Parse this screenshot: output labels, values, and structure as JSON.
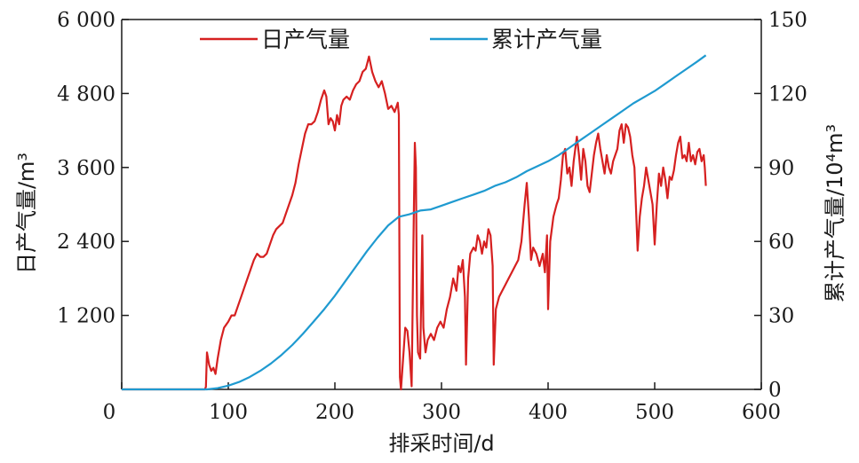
{
  "chart_data": {
    "type": "line",
    "xlabel": "排采时间/d",
    "ylabel_left": "日产气量/m³",
    "ylabel_right": "累计产气量/10⁴m³",
    "xlim": [
      0,
      600
    ],
    "ylim_left": [
      0,
      6000
    ],
    "ylim_right": [
      0,
      150
    ],
    "x_ticks": [
      {
        "value": 0,
        "label": "0"
      },
      {
        "value": 100,
        "label": "100"
      },
      {
        "value": 200,
        "label": "200"
      },
      {
        "value": 300,
        "label": "300"
      },
      {
        "value": 400,
        "label": "400"
      },
      {
        "value": 500,
        "label": "500"
      },
      {
        "value": 600,
        "label": "600"
      }
    ],
    "y_left_ticks": [
      {
        "value": 1200,
        "label": "1 200"
      },
      {
        "value": 2400,
        "label": "2 400"
      },
      {
        "value": 3600,
        "label": "3 600"
      },
      {
        "value": 4800,
        "label": "4 800"
      },
      {
        "value": 6000,
        "label": "6 000"
      }
    ],
    "y_right_ticks": [
      {
        "value": 0,
        "label": "0"
      },
      {
        "value": 30,
        "label": "30"
      },
      {
        "value": 60,
        "label": "60"
      },
      {
        "value": 90,
        "label": "90"
      },
      {
        "value": 120,
        "label": "120"
      },
      {
        "value": 150,
        "label": "150"
      }
    ],
    "legend_position": "top",
    "grid": false,
    "series": [
      {
        "name": "日产气量",
        "axis": "left",
        "color": "#d62020",
        "points": [
          [
            0,
            0
          ],
          [
            78,
            0
          ],
          [
            79,
            40
          ],
          [
            80,
            600
          ],
          [
            82,
            400
          ],
          [
            84,
            300
          ],
          [
            86,
            350
          ],
          [
            88,
            250
          ],
          [
            90,
            500
          ],
          [
            93,
            800
          ],
          [
            96,
            1000
          ],
          [
            100,
            1100
          ],
          [
            103,
            1200
          ],
          [
            106,
            1200
          ],
          [
            109,
            1350
          ],
          [
            112,
            1500
          ],
          [
            115,
            1650
          ],
          [
            118,
            1800
          ],
          [
            121,
            1950
          ],
          [
            124,
            2100
          ],
          [
            127,
            2200
          ],
          [
            130,
            2150
          ],
          [
            133,
            2150
          ],
          [
            136,
            2200
          ],
          [
            139,
            2350
          ],
          [
            142,
            2500
          ],
          [
            145,
            2600
          ],
          [
            148,
            2650
          ],
          [
            151,
            2700
          ],
          [
            154,
            2850
          ],
          [
            157,
            3000
          ],
          [
            160,
            3150
          ],
          [
            163,
            3350
          ],
          [
            166,
            3650
          ],
          [
            169,
            3900
          ],
          [
            172,
            4150
          ],
          [
            175,
            4300
          ],
          [
            178,
            4300
          ],
          [
            181,
            4350
          ],
          [
            184,
            4500
          ],
          [
            187,
            4700
          ],
          [
            190,
            4850
          ],
          [
            192,
            4750
          ],
          [
            194,
            4300
          ],
          [
            196,
            4400
          ],
          [
            198,
            4350
          ],
          [
            200,
            4200
          ],
          [
            202,
            4450
          ],
          [
            204,
            4300
          ],
          [
            206,
            4600
          ],
          [
            208,
            4700
          ],
          [
            211,
            4750
          ],
          [
            214,
            4700
          ],
          [
            217,
            4850
          ],
          [
            220,
            4950
          ],
          [
            223,
            5000
          ],
          [
            226,
            5150
          ],
          [
            229,
            5200
          ],
          [
            232,
            5400
          ],
          [
            235,
            5150
          ],
          [
            238,
            5000
          ],
          [
            241,
            4900
          ],
          [
            244,
            5000
          ],
          [
            247,
            4800
          ],
          [
            250,
            4550
          ],
          [
            253,
            4600
          ],
          [
            256,
            4500
          ],
          [
            259,
            4650
          ],
          [
            260,
            4450
          ],
          [
            261,
            200
          ],
          [
            262,
            0
          ],
          [
            264,
            500
          ],
          [
            266,
            1000
          ],
          [
            268,
            950
          ],
          [
            270,
            600
          ],
          [
            272,
            50
          ],
          [
            274,
            2800
          ],
          [
            275,
            4000
          ],
          [
            276,
            3600
          ],
          [
            277,
            1200
          ],
          [
            278,
            600
          ],
          [
            280,
            500
          ],
          [
            282,
            2500
          ],
          [
            283,
            1000
          ],
          [
            285,
            600
          ],
          [
            287,
            800
          ],
          [
            290,
            900
          ],
          [
            293,
            800
          ],
          [
            296,
            1000
          ],
          [
            299,
            1100
          ],
          [
            302,
            1000
          ],
          [
            305,
            1300
          ],
          [
            308,
            1500
          ],
          [
            311,
            1800
          ],
          [
            314,
            1600
          ],
          [
            316,
            2000
          ],
          [
            318,
            1900
          ],
          [
            320,
            2100
          ],
          [
            322,
            1500
          ],
          [
            323,
            400
          ],
          [
            325,
            1800
          ],
          [
            327,
            2200
          ],
          [
            330,
            2300
          ],
          [
            332,
            2250
          ],
          [
            334,
            2500
          ],
          [
            336,
            2400
          ],
          [
            338,
            2200
          ],
          [
            340,
            2400
          ],
          [
            342,
            2300
          ],
          [
            344,
            2600
          ],
          [
            346,
            2500
          ],
          [
            348,
            2000
          ],
          [
            349,
            400
          ],
          [
            351,
            1300
          ],
          [
            354,
            1500
          ],
          [
            357,
            1600
          ],
          [
            360,
            1700
          ],
          [
            363,
            1800
          ],
          [
            366,
            1900
          ],
          [
            369,
            2000
          ],
          [
            372,
            2100
          ],
          [
            375,
            2400
          ],
          [
            378,
            3000
          ],
          [
            380,
            3350
          ],
          [
            382,
            2800
          ],
          [
            384,
            2100
          ],
          [
            386,
            2300
          ],
          [
            389,
            2200
          ],
          [
            392,
            2000
          ],
          [
            395,
            2200
          ],
          [
            397,
            1900
          ],
          [
            399,
            2500
          ],
          [
            400,
            1300
          ],
          [
            402,
            2400
          ],
          [
            405,
            2800
          ],
          [
            408,
            3000
          ],
          [
            410,
            3100
          ],
          [
            412,
            3400
          ],
          [
            414,
            3800
          ],
          [
            416,
            3900
          ],
          [
            418,
            3500
          ],
          [
            420,
            3600
          ],
          [
            422,
            3300
          ],
          [
            424,
            3700
          ],
          [
            427,
            4100
          ],
          [
            429,
            3800
          ],
          [
            431,
            3400
          ],
          [
            433,
            3900
          ],
          [
            435,
            3700
          ],
          [
            437,
            3300
          ],
          [
            439,
            3200
          ],
          [
            441,
            3500
          ],
          [
            443,
            3800
          ],
          [
            445,
            4000
          ],
          [
            447,
            4150
          ],
          [
            449,
            3900
          ],
          [
            451,
            3700
          ],
          [
            453,
            3500
          ],
          [
            455,
            3800
          ],
          [
            457,
            3600
          ],
          [
            459,
            3500
          ],
          [
            461,
            3700
          ],
          [
            463,
            3800
          ],
          [
            465,
            3900
          ],
          [
            467,
            4200
          ],
          [
            469,
            4300
          ],
          [
            471,
            4000
          ],
          [
            473,
            4300
          ],
          [
            475,
            4250
          ],
          [
            477,
            4100
          ],
          [
            479,
            3800
          ],
          [
            481,
            3600
          ],
          [
            483,
            2700
          ],
          [
            484,
            2250
          ],
          [
            486,
            2800
          ],
          [
            488,
            3100
          ],
          [
            490,
            3300
          ],
          [
            492,
            3600
          ],
          [
            494,
            3400
          ],
          [
            496,
            3200
          ],
          [
            498,
            3000
          ],
          [
            500,
            2350
          ],
          [
            502,
            3000
          ],
          [
            504,
            3500
          ],
          [
            506,
            3300
          ],
          [
            508,
            3600
          ],
          [
            510,
            3400
          ],
          [
            512,
            3100
          ],
          [
            514,
            3450
          ],
          [
            516,
            3400
          ],
          [
            518,
            3550
          ],
          [
            520,
            3800
          ],
          [
            522,
            4000
          ],
          [
            524,
            4100
          ],
          [
            526,
            3750
          ],
          [
            528,
            3800
          ],
          [
            530,
            3700
          ],
          [
            532,
            4000
          ],
          [
            534,
            3700
          ],
          [
            536,
            3800
          ],
          [
            538,
            3650
          ],
          [
            540,
            3850
          ],
          [
            542,
            3900
          ],
          [
            544,
            3700
          ],
          [
            546,
            3800
          ],
          [
            547,
            3600
          ],
          [
            548,
            3300
          ]
        ]
      },
      {
        "name": "累计产气量",
        "axis": "right",
        "color": "#1f9ad0",
        "points": [
          [
            0,
            0
          ],
          [
            80,
            0
          ],
          [
            90,
            0.5
          ],
          [
            100,
            1.5
          ],
          [
            110,
            3
          ],
          [
            120,
            5
          ],
          [
            130,
            7.5
          ],
          [
            140,
            10.5
          ],
          [
            150,
            14
          ],
          [
            160,
            18
          ],
          [
            170,
            22.5
          ],
          [
            180,
            27.5
          ],
          [
            190,
            32.5
          ],
          [
            200,
            38
          ],
          [
            210,
            44
          ],
          [
            220,
            50
          ],
          [
            230,
            56
          ],
          [
            240,
            61.5
          ],
          [
            250,
            66.5
          ],
          [
            260,
            70
          ],
          [
            270,
            71
          ],
          [
            280,
            72.5
          ],
          [
            290,
            73
          ],
          [
            300,
            74.5
          ],
          [
            310,
            76
          ],
          [
            320,
            77.5
          ],
          [
            330,
            79
          ],
          [
            340,
            80.5
          ],
          [
            350,
            82.5
          ],
          [
            360,
            84
          ],
          [
            370,
            86
          ],
          [
            380,
            88.5
          ],
          [
            390,
            90.5
          ],
          [
            400,
            92.5
          ],
          [
            410,
            95
          ],
          [
            420,
            98
          ],
          [
            430,
            101
          ],
          [
            440,
            104
          ],
          [
            450,
            107
          ],
          [
            460,
            110
          ],
          [
            470,
            113
          ],
          [
            480,
            116
          ],
          [
            490,
            118.5
          ],
          [
            500,
            121
          ],
          [
            510,
            124
          ],
          [
            520,
            127
          ],
          [
            530,
            130
          ],
          [
            540,
            133
          ],
          [
            548,
            135.5
          ]
        ]
      }
    ]
  }
}
